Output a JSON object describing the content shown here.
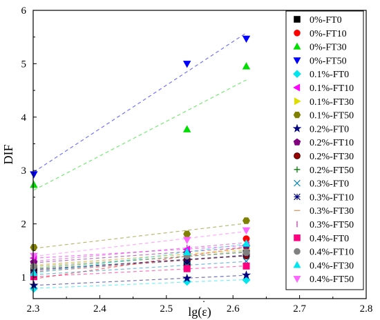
{
  "chart_data": {
    "type": "scatter",
    "title": "",
    "xlabel": "lg(ε̇)",
    "ylabel": "DIF",
    "xlim": [
      2.3,
      2.8
    ],
    "ylim": [
      0.6,
      6.0
    ],
    "xticks": [
      "2.3",
      "2.4",
      "2.5",
      "2.6",
      "2.7",
      "2.8"
    ],
    "yticks": [
      "1",
      "2",
      "3",
      "4",
      "5",
      "6"
    ],
    "grid": false,
    "legend_position": "right",
    "x": [
      2.301,
      2.531,
      2.62
    ],
    "series": [
      {
        "name": "0%-FT0",
        "values": [
          1.17,
          1.26,
          1.45
        ],
        "color": "#000000",
        "marker": "square"
      },
      {
        "name": "0%-FT10",
        "values": [
          1.03,
          1.18,
          1.72
        ],
        "color": "#ff0000",
        "marker": "circle"
      },
      {
        "name": "0%-FT30",
        "values": [
          2.73,
          3.77,
          4.95
        ],
        "color": "#00dd00",
        "marker": "triangle-up"
      },
      {
        "name": "0%-FT50",
        "values": [
          2.93,
          5.0,
          5.47
        ],
        "color": "#0000ff",
        "marker": "triangle-down"
      },
      {
        "name": "0.1%-FT0",
        "values": [
          0.79,
          0.92,
          0.95
        ],
        "color": "#00e5ee",
        "marker": "diamond"
      },
      {
        "name": "0.1%-FT10",
        "values": [
          1.36,
          1.52,
          1.6
        ],
        "color": "#ff00ff",
        "marker": "triangle-left"
      },
      {
        "name": "0.1%-FT30",
        "values": [
          1.22,
          1.42,
          1.54
        ],
        "color": "#dddd00",
        "marker": "triangle-right"
      },
      {
        "name": "0.1%-FT50",
        "values": [
          1.56,
          1.81,
          2.06
        ],
        "color": "#808000",
        "marker": "hexagon"
      },
      {
        "name": "0.2%-FT0",
        "values": [
          0.85,
          0.98,
          1.04
        ],
        "color": "#000080",
        "marker": "star"
      },
      {
        "name": "0.2%-FT10",
        "values": [
          1.28,
          1.45,
          1.58
        ],
        "color": "#800080",
        "marker": "pentagon"
      },
      {
        "name": "0.2%-FT30",
        "values": [
          1.1,
          1.33,
          1.4
        ],
        "color": "#990000",
        "marker": "ball"
      },
      {
        "name": "0.2%-FT50",
        "values": [
          1.18,
          1.36,
          1.5
        ],
        "color": "#008000",
        "marker": "plus"
      },
      {
        "name": "0.3%-FT0",
        "values": [
          1.05,
          1.22,
          1.3
        ],
        "color": "#0080c0",
        "marker": "x"
      },
      {
        "name": "0.3%-FT10",
        "values": [
          1.14,
          1.3,
          1.44
        ],
        "color": "#000080",
        "marker": "asterisk"
      },
      {
        "name": "0.3%-FT30",
        "values": [
          1.24,
          1.4,
          1.52
        ],
        "color": "#cc9966",
        "marker": "hline"
      },
      {
        "name": "0.3%-FT50",
        "values": [
          1.3,
          1.55,
          1.65
        ],
        "color": "#cc33cc",
        "marker": "vline"
      },
      {
        "name": "0.4%-FT0",
        "values": [
          1.01,
          1.16,
          1.21
        ],
        "color": "#ff0080",
        "marker": "square"
      },
      {
        "name": "0.4%-FT10",
        "values": [
          1.2,
          1.4,
          1.46
        ],
        "color": "#808080",
        "marker": "circle"
      },
      {
        "name": "0.4%-FT30",
        "values": [
          1.08,
          1.47,
          1.63
        ],
        "color": "#00e5ee",
        "marker": "triangle-up"
      },
      {
        "name": "0.4%-FT50",
        "values": [
          1.4,
          1.7,
          1.88
        ],
        "color": "#ff66ff",
        "marker": "triangle-down"
      }
    ]
  }
}
